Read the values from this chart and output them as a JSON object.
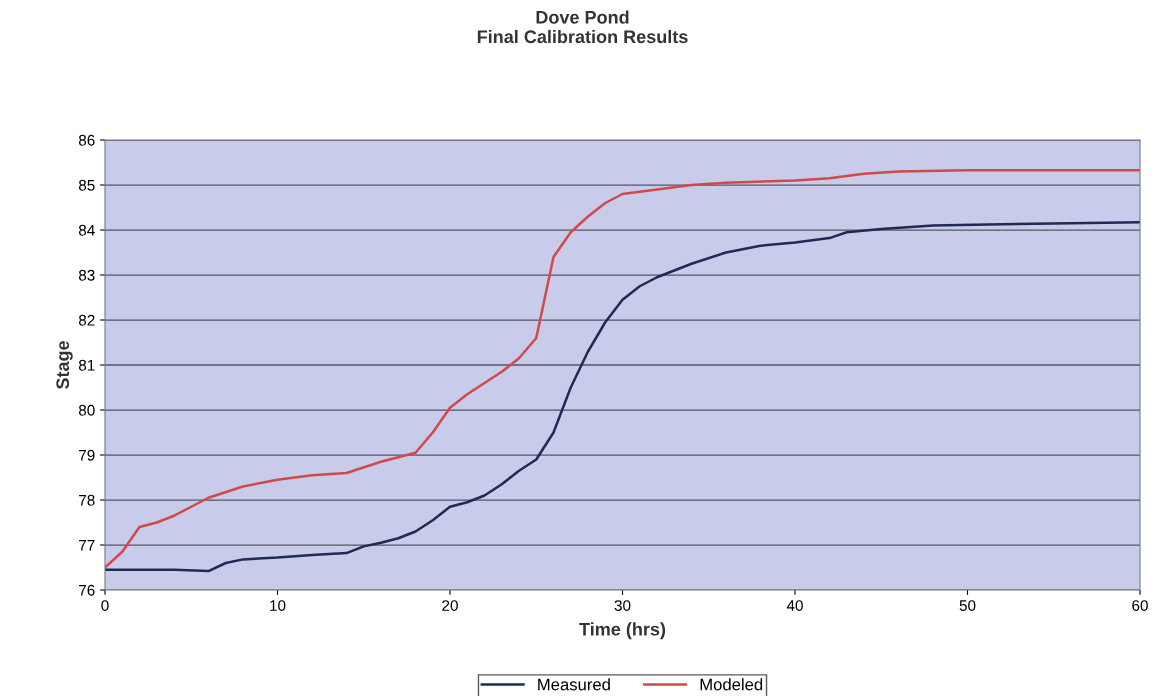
{
  "chart_data": {
    "type": "line",
    "title": "Dove Pond\nFinal Calibration Results",
    "xlabel": "Time (hrs)",
    "ylabel": "Stage",
    "xlim": [
      0,
      60
    ],
    "xticks": [
      0,
      10,
      20,
      30,
      40,
      50,
      60
    ],
    "ylim": [
      76,
      86
    ],
    "yticks": [
      76,
      77,
      78,
      79,
      80,
      81,
      82,
      83,
      84,
      85,
      86
    ],
    "grid": "y",
    "legend": "bottom",
    "marker": "none",
    "line_style": "solid",
    "series": [
      {
        "name": "Measured",
        "color": "#1f2a55",
        "x": [
          0,
          2,
          4,
          6,
          7,
          8,
          10,
          12,
          14,
          15,
          16,
          17,
          18,
          19,
          20,
          21,
          22,
          23,
          24,
          25,
          26,
          27,
          28,
          29,
          30,
          31,
          32,
          34,
          36,
          38,
          40,
          42,
          43,
          45,
          48,
          52,
          56,
          60
        ],
        "values": [
          76.45,
          76.45,
          76.45,
          76.42,
          76.6,
          76.68,
          76.72,
          76.78,
          76.82,
          76.97,
          77.05,
          77.15,
          77.3,
          77.55,
          77.85,
          77.95,
          78.1,
          78.35,
          78.65,
          78.9,
          79.5,
          80.5,
          81.3,
          81.95,
          82.45,
          82.75,
          82.95,
          83.25,
          83.5,
          83.65,
          83.72,
          83.82,
          83.95,
          84.02,
          84.1,
          84.13,
          84.15,
          84.17
        ]
      },
      {
        "name": "Modeled",
        "color": "#d04a4a",
        "x": [
          0,
          1,
          2,
          3,
          4,
          5,
          6,
          8,
          10,
          12,
          14,
          16,
          18,
          19,
          20,
          21,
          22,
          23,
          24,
          25,
          25.5,
          26,
          27,
          28,
          29,
          30,
          32,
          34,
          36,
          40,
          42,
          44,
          46,
          50,
          55,
          60
        ],
        "values": [
          76.5,
          76.85,
          77.4,
          77.5,
          77.65,
          77.85,
          78.05,
          78.3,
          78.45,
          78.55,
          78.6,
          78.85,
          79.05,
          79.5,
          80.05,
          80.35,
          80.6,
          80.85,
          81.15,
          81.6,
          82.5,
          83.4,
          83.95,
          84.3,
          84.6,
          84.8,
          84.9,
          85.0,
          85.05,
          85.1,
          85.15,
          85.25,
          85.3,
          85.33,
          85.33,
          85.33
        ]
      }
    ]
  }
}
